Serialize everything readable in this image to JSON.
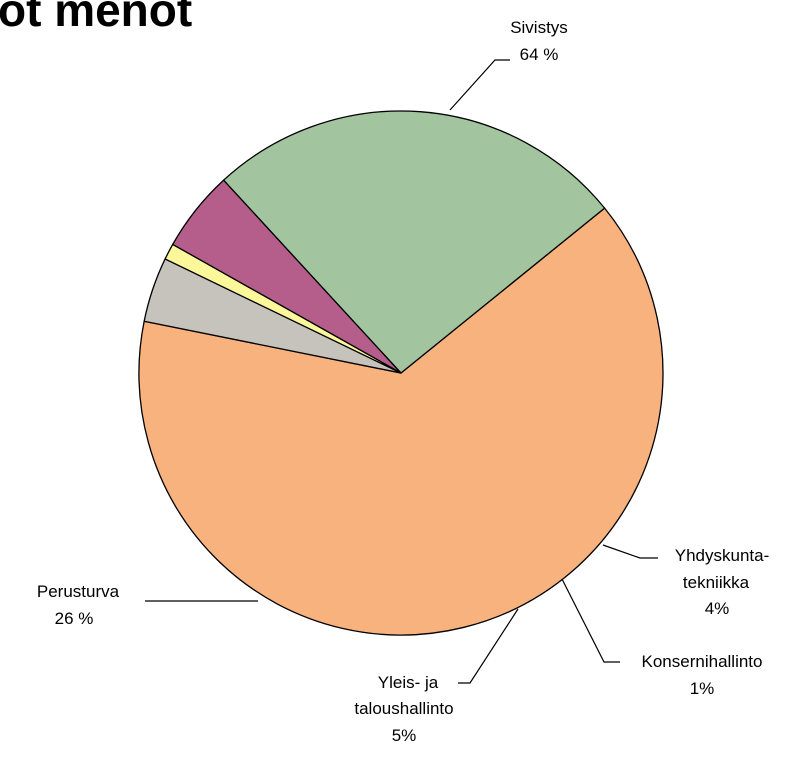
{
  "chart_data": {
    "type": "pie",
    "title": "ot menot",
    "slices": [
      {
        "label": "Sivistys",
        "value_text": "64 %",
        "value": 64,
        "color": "#f7b27e"
      },
      {
        "label": "Yhdyskunta-tekniikka",
        "label_lines": [
          "Yhdyskunta-",
          "tekniikka"
        ],
        "value_text": "4%",
        "value": 4,
        "color": "#c6c3bc"
      },
      {
        "label": "Konsernihallinto",
        "value_text": "1%",
        "value": 1,
        "color": "#fbf79a"
      },
      {
        "label": "Yleis- ja taloushallinto",
        "label_lines": [
          "Yleis- ja",
          "taloushallinto"
        ],
        "value_text": "5%",
        "value": 5,
        "color": "#b55e8c"
      },
      {
        "label": "Perusturva",
        "value_text": "26 %",
        "value": 26,
        "color": "#a2c49f"
      }
    ]
  }
}
